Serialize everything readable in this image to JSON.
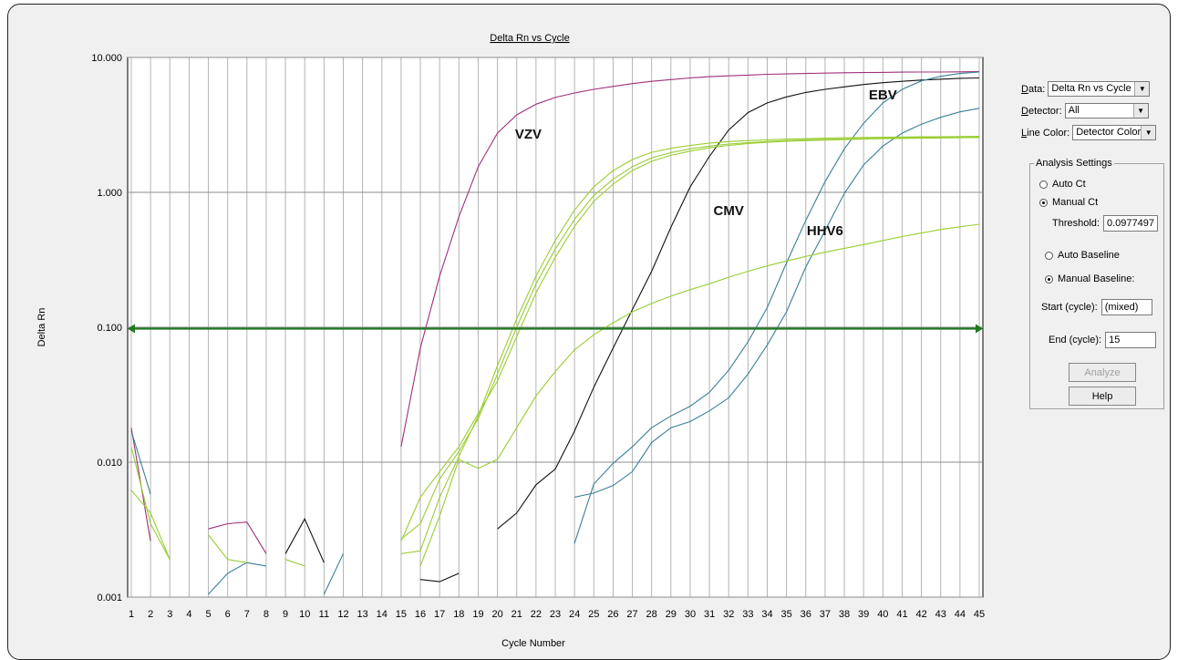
{
  "chart_data": {
    "type": "line",
    "title": "Delta Rn vs Cycle",
    "xlabel": "Cycle Number",
    "ylabel": "Delta Rn",
    "yscale": "log",
    "ylim": [
      0.001,
      10
    ],
    "xlim": [
      1,
      45
    ],
    "x_ticks": [
      "1",
      "2",
      "3",
      "4",
      "5",
      "6",
      "7",
      "8",
      "9",
      "10",
      "11",
      "12",
      "13",
      "14",
      "15",
      "16",
      "17",
      "18",
      "19",
      "20",
      "21",
      "22",
      "23",
      "24",
      "25",
      "26",
      "27",
      "28",
      "29",
      "30",
      "31",
      "32",
      "33",
      "34",
      "35",
      "36",
      "37",
      "38",
      "39",
      "40",
      "41",
      "42",
      "43",
      "44",
      "45"
    ],
    "y_ticks": [
      {
        "value": 10,
        "label": "10.000"
      },
      {
        "value": 1,
        "label": "1.000"
      },
      {
        "value": 0.1,
        "label": "0.100"
      },
      {
        "value": 0.01,
        "label": "0.010"
      },
      {
        "value": 0.001,
        "label": "0.001"
      }
    ],
    "grid": true,
    "threshold": {
      "value": 0.0977497,
      "color": "#1f7a1f"
    },
    "annotations": [
      {
        "text": "VZV",
        "x": 21.6,
        "y": 2.5
      },
      {
        "text": "CMV",
        "x": 32.0,
        "y": 0.68
      },
      {
        "text": "HHV6",
        "x": 37.0,
        "y": 0.48
      },
      {
        "text": "EBV",
        "x": 40.0,
        "y": 4.9
      }
    ],
    "series": [
      {
        "color": "#a0307a",
        "points": [
          [
            1,
            0.018
          ],
          [
            2,
            0.0026
          ]
        ]
      },
      {
        "color": "#a0307a",
        "points": [
          [
            5,
            0.0032
          ],
          [
            6,
            0.0035
          ],
          [
            7,
            0.0036
          ],
          [
            8,
            0.0021
          ]
        ]
      },
      {
        "color": "#a0307a",
        "points": [
          [
            15,
            0.013
          ],
          [
            16,
            0.07
          ],
          [
            17,
            0.24
          ],
          [
            18,
            0.66
          ],
          [
            19,
            1.55
          ],
          [
            20,
            2.75
          ],
          [
            21,
            3.75
          ],
          [
            22,
            4.5
          ],
          [
            23,
            5.05
          ],
          [
            24,
            5.45
          ],
          [
            25,
            5.8
          ],
          [
            26,
            6.1
          ],
          [
            27,
            6.4
          ],
          [
            28,
            6.65
          ],
          [
            29,
            6.85
          ],
          [
            30,
            7.05
          ],
          [
            31,
            7.2
          ],
          [
            32,
            7.3
          ],
          [
            33,
            7.4
          ],
          [
            34,
            7.5
          ],
          [
            35,
            7.55
          ],
          [
            36,
            7.6
          ],
          [
            37,
            7.65
          ],
          [
            38,
            7.7
          ],
          [
            39,
            7.72
          ],
          [
            40,
            7.75
          ],
          [
            41,
            7.78
          ],
          [
            42,
            7.8
          ],
          [
            43,
            7.8
          ],
          [
            44,
            7.82
          ],
          [
            45,
            7.85
          ]
        ]
      },
      {
        "color": "#111111",
        "points": [
          [
            9,
            0.0021
          ],
          [
            10,
            0.0038
          ],
          [
            11,
            0.0018
          ]
        ]
      },
      {
        "color": "#111111",
        "points": [
          [
            16,
            0.00135
          ],
          [
            17,
            0.0013
          ],
          [
            18,
            0.0015
          ]
        ]
      },
      {
        "color": "#111111",
        "points": [
          [
            20,
            0.0032
          ],
          [
            21,
            0.0042
          ],
          [
            22,
            0.0068
          ],
          [
            23,
            0.0089
          ],
          [
            24,
            0.017
          ],
          [
            25,
            0.036
          ],
          [
            26,
            0.07
          ],
          [
            27,
            0.135
          ],
          [
            28,
            0.26
          ],
          [
            29,
            0.55
          ],
          [
            30,
            1.1
          ],
          [
            31,
            1.85
          ],
          [
            32,
            2.9
          ],
          [
            33,
            3.9
          ],
          [
            34,
            4.6
          ],
          [
            35,
            5.1
          ],
          [
            36,
            5.5
          ],
          [
            37,
            5.8
          ],
          [
            38,
            6.05
          ],
          [
            39,
            6.3
          ],
          [
            40,
            6.5
          ],
          [
            41,
            6.65
          ],
          [
            42,
            6.8
          ],
          [
            43,
            6.9
          ],
          [
            44,
            7.0
          ],
          [
            45,
            7.05
          ]
        ]
      },
      {
        "color": "#3a7f96",
        "points": [
          [
            1,
            0.017
          ],
          [
            2,
            0.0058
          ]
        ]
      },
      {
        "color": "#3a7f96",
        "points": [
          [
            5,
            0.00105
          ],
          [
            6,
            0.0015
          ],
          [
            7,
            0.0018
          ],
          [
            8,
            0.0017
          ]
        ]
      },
      {
        "color": "#3a7f96",
        "points": [
          [
            11,
            0.00105
          ],
          [
            12,
            0.0021
          ]
        ]
      },
      {
        "color": "#3a7f96",
        "points": [
          [
            24,
            0.0025
          ],
          [
            25,
            0.0069
          ],
          [
            26,
            0.0098
          ],
          [
            27,
            0.013
          ],
          [
            28,
            0.018
          ],
          [
            29,
            0.022
          ],
          [
            30,
            0.026
          ],
          [
            31,
            0.033
          ],
          [
            32,
            0.048
          ],
          [
            33,
            0.078
          ],
          [
            34,
            0.14
          ],
          [
            35,
            0.3
          ],
          [
            36,
            0.62
          ],
          [
            37,
            1.2
          ],
          [
            38,
            2.1
          ],
          [
            39,
            3.25
          ],
          [
            40,
            4.6
          ],
          [
            41,
            5.8
          ],
          [
            42,
            6.7
          ],
          [
            43,
            7.25
          ],
          [
            44,
            7.6
          ],
          [
            45,
            7.8
          ]
        ]
      },
      {
        "color": "#3a7f96",
        "points": [
          [
            24,
            0.0055
          ],
          [
            25,
            0.0059
          ],
          [
            26,
            0.0067
          ],
          [
            27,
            0.0085
          ],
          [
            28,
            0.014
          ],
          [
            29,
            0.018
          ],
          [
            30,
            0.02
          ],
          [
            31,
            0.024
          ],
          [
            32,
            0.03
          ],
          [
            33,
            0.045
          ],
          [
            34,
            0.074
          ],
          [
            35,
            0.13
          ],
          [
            36,
            0.28
          ],
          [
            37,
            0.52
          ],
          [
            38,
            0.98
          ],
          [
            39,
            1.6
          ],
          [
            40,
            2.2
          ],
          [
            41,
            2.75
          ],
          [
            42,
            3.2
          ],
          [
            43,
            3.6
          ],
          [
            44,
            3.95
          ],
          [
            45,
            4.2
          ]
        ]
      },
      {
        "color": "#9acd32",
        "points": [
          [
            1,
            0.013
          ],
          [
            2,
            0.0035
          ],
          [
            3,
            0.0019
          ]
        ]
      },
      {
        "color": "#9acd32",
        "points": [
          [
            5,
            0.0029
          ],
          [
            6,
            0.0019
          ],
          [
            7,
            0.0018
          ]
        ]
      },
      {
        "color": "#9acd32",
        "points": [
          [
            9,
            0.0019
          ],
          [
            10,
            0.0017
          ]
        ]
      },
      {
        "color": "#9acd32",
        "points": [
          [
            1,
            0.0062
          ],
          [
            2,
            0.0042
          ],
          [
            3,
            0.0019
          ]
        ]
      },
      {
        "color": "#9acd32",
        "points": [
          [
            15,
            0.0021
          ],
          [
            16,
            0.0022
          ],
          [
            17,
            0.0055
          ],
          [
            18,
            0.011
          ],
          [
            19,
            0.022
          ],
          [
            20,
            0.052
          ],
          [
            21,
            0.115
          ],
          [
            22,
            0.24
          ],
          [
            23,
            0.44
          ],
          [
            24,
            0.74
          ],
          [
            25,
            1.1
          ],
          [
            26,
            1.45
          ],
          [
            27,
            1.75
          ],
          [
            28,
            1.98
          ],
          [
            29,
            2.12
          ],
          [
            30,
            2.23
          ],
          [
            31,
            2.32
          ],
          [
            32,
            2.38
          ],
          [
            33,
            2.42
          ],
          [
            34,
            2.45
          ],
          [
            35,
            2.48
          ],
          [
            36,
            2.5
          ],
          [
            37,
            2.52
          ],
          [
            38,
            2.54
          ],
          [
            39,
            2.55
          ],
          [
            40,
            2.56
          ],
          [
            41,
            2.57
          ],
          [
            42,
            2.58
          ],
          [
            43,
            2.58
          ],
          [
            44,
            2.59
          ],
          [
            45,
            2.6
          ]
        ]
      },
      {
        "color": "#9acd32",
        "points": [
          [
            15,
            0.0027
          ],
          [
            16,
            0.0035
          ],
          [
            17,
            0.0075
          ],
          [
            18,
            0.012
          ],
          [
            19,
            0.021
          ],
          [
            20,
            0.045
          ],
          [
            21,
            0.1
          ],
          [
            22,
            0.21
          ],
          [
            23,
            0.38
          ],
          [
            24,
            0.63
          ],
          [
            25,
            0.95
          ],
          [
            26,
            1.25
          ],
          [
            27,
            1.55
          ],
          [
            28,
            1.8
          ],
          [
            29,
            1.97
          ],
          [
            30,
            2.1
          ],
          [
            31,
            2.2
          ],
          [
            32,
            2.28
          ],
          [
            33,
            2.33
          ],
          [
            34,
            2.38
          ],
          [
            35,
            2.42
          ],
          [
            36,
            2.45
          ],
          [
            37,
            2.47
          ],
          [
            38,
            2.49
          ],
          [
            39,
            2.5
          ],
          [
            40,
            2.52
          ],
          [
            41,
            2.53
          ],
          [
            42,
            2.54
          ],
          [
            43,
            2.55
          ],
          [
            44,
            2.55
          ],
          [
            45,
            2.56
          ]
        ]
      },
      {
        "color": "#9acd32",
        "points": [
          [
            15,
            0.0026
          ],
          [
            16,
            0.0055
          ],
          [
            17,
            0.0085
          ],
          [
            18,
            0.013
          ],
          [
            19,
            0.023
          ],
          [
            20,
            0.04
          ],
          [
            21,
            0.085
          ],
          [
            22,
            0.18
          ],
          [
            23,
            0.33
          ],
          [
            24,
            0.56
          ],
          [
            25,
            0.86
          ],
          [
            26,
            1.15
          ],
          [
            27,
            1.45
          ],
          [
            28,
            1.7
          ],
          [
            29,
            1.88
          ],
          [
            30,
            2.02
          ],
          [
            31,
            2.14
          ],
          [
            32,
            2.23
          ],
          [
            33,
            2.3
          ],
          [
            34,
            2.35
          ],
          [
            35,
            2.39
          ],
          [
            36,
            2.42
          ],
          [
            37,
            2.44
          ],
          [
            38,
            2.46
          ],
          [
            39,
            2.48
          ],
          [
            40,
            2.5
          ],
          [
            41,
            2.51
          ],
          [
            42,
            2.52
          ],
          [
            43,
            2.53
          ],
          [
            44,
            2.54
          ],
          [
            45,
            2.55
          ]
        ]
      },
      {
        "color": "#9acd32",
        "points": [
          [
            16,
            0.0017
          ],
          [
            17,
            0.004
          ],
          [
            18,
            0.0105
          ],
          [
            19,
            0.009
          ],
          [
            20,
            0.0105
          ],
          [
            21,
            0.018
          ],
          [
            22,
            0.031
          ],
          [
            23,
            0.047
          ],
          [
            24,
            0.068
          ],
          [
            25,
            0.088
          ],
          [
            26,
            0.108
          ],
          [
            27,
            0.13
          ],
          [
            28,
            0.15
          ],
          [
            29,
            0.17
          ],
          [
            30,
            0.19
          ],
          [
            31,
            0.21
          ],
          [
            32,
            0.235
          ],
          [
            33,
            0.26
          ],
          [
            34,
            0.285
          ],
          [
            35,
            0.31
          ],
          [
            36,
            0.335
          ],
          [
            37,
            0.36
          ],
          [
            38,
            0.385
          ],
          [
            39,
            0.41
          ],
          [
            40,
            0.44
          ],
          [
            41,
            0.47
          ],
          [
            42,
            0.5
          ],
          [
            43,
            0.53
          ],
          [
            44,
            0.555
          ],
          [
            45,
            0.58
          ]
        ]
      }
    ]
  },
  "panel": {
    "data_label": "Data:",
    "data_value": "Delta Rn vs Cycle",
    "detector_label": "Detector:",
    "detector_value": "All",
    "line_color_label": "Line Color:",
    "line_color_value": "Detector Color",
    "analysis_title": "Analysis Settings",
    "auto_ct": "Auto Ct",
    "manual_ct": "Manual Ct",
    "threshold_label": "Threshold:",
    "threshold_value": "0.0977497",
    "auto_baseline": "Auto Baseline",
    "manual_baseline": "Manual Baseline:",
    "start_label": "Start (cycle):",
    "start_value": "(mixed)",
    "end_label": "End (cycle):",
    "end_value": "15",
    "analyze_label": "Analyze",
    "help_label": "Help",
    "dropdown_icon": "chevron-down-icon"
  }
}
